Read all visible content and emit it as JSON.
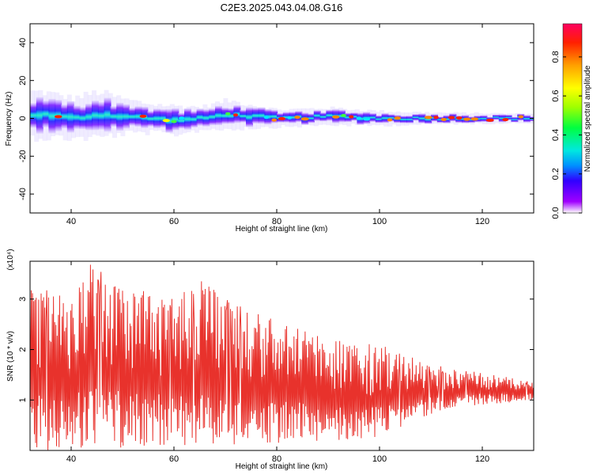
{
  "title": "C2E3.2025.043.04.08.G16",
  "chart_data": [
    {
      "type": "heatmap",
      "xlabel": "Height of straight line (km)",
      "ylabel": "Frequency (Hz)",
      "xlim": [
        32,
        130
      ],
      "ylim": [
        -50,
        50
      ],
      "xticks": [
        "40",
        "60",
        "80",
        "100",
        "120"
      ],
      "yticks": [
        "40",
        "20",
        "0",
        "-20",
        "-40"
      ],
      "colorbar": {
        "label": "Normalized spectral amplitude",
        "range": [
          0,
          0.97
        ],
        "ticks": [
          "0.8",
          "0.6",
          "0.4",
          "0.2",
          "0.0"
        ]
      },
      "band": [
        {
          "x": 34,
          "center": 2,
          "halfwidth": 8
        },
        {
          "x": 40,
          "center": 0,
          "halfwidth": 7
        },
        {
          "x": 45,
          "center": 2,
          "halfwidth": 8
        },
        {
          "x": 50,
          "center": 1,
          "halfwidth": 6
        },
        {
          "x": 55,
          "center": 0,
          "halfwidth": 5
        },
        {
          "x": 60,
          "center": -1,
          "halfwidth": 5
        },
        {
          "x": 65,
          "center": 0,
          "halfwidth": 4
        },
        {
          "x": 70,
          "center": 2,
          "halfwidth": 5
        },
        {
          "x": 75,
          "center": 1,
          "halfwidth": 4
        },
        {
          "x": 80,
          "center": 0,
          "halfwidth": 3
        },
        {
          "x": 90,
          "center": 1,
          "halfwidth": 3
        },
        {
          "x": 100,
          "center": 0,
          "halfwidth": 2.5
        },
        {
          "x": 110,
          "center": 0,
          "halfwidth": 2
        },
        {
          "x": 120,
          "center": 0,
          "halfwidth": 1.8
        },
        {
          "x": 130,
          "center": 0,
          "halfwidth": 1.5
        }
      ]
    },
    {
      "type": "line",
      "xlabel": "Height of straight line (km)",
      "ylabel": "SNR (10 * v/v)",
      "yunit": "(x10⁴)",
      "xlim": [
        32,
        130
      ],
      "ylim": [
        0,
        3.75
      ],
      "xticks": [
        "40",
        "60",
        "80",
        "100",
        "120"
      ],
      "yticks": [
        "1",
        "2",
        "3"
      ],
      "color": "#e8322c",
      "envelope": [
        {
          "x": 32,
          "max": 3.3
        },
        {
          "x": 40,
          "max": 3.0
        },
        {
          "x": 43,
          "max": 3.75
        },
        {
          "x": 50,
          "max": 3.3
        },
        {
          "x": 60,
          "max": 3.0
        },
        {
          "x": 66,
          "max": 3.5
        },
        {
          "x": 70,
          "max": 3.0
        },
        {
          "x": 80,
          "max": 2.6
        },
        {
          "x": 90,
          "max": 2.2
        },
        {
          "x": 100,
          "max": 2.1
        },
        {
          "x": 110,
          "max": 1.7
        },
        {
          "x": 120,
          "max": 1.55
        },
        {
          "x": 130,
          "max": 1.35
        }
      ],
      "floor": [
        {
          "x": 32,
          "min": 0.0
        },
        {
          "x": 70,
          "min": 0.1
        },
        {
          "x": 90,
          "min": 0.2
        },
        {
          "x": 100,
          "min": 0.2
        },
        {
          "x": 110,
          "min": 0.7
        },
        {
          "x": 120,
          "min": 0.9
        },
        {
          "x": 130,
          "min": 1.0
        }
      ]
    }
  ]
}
